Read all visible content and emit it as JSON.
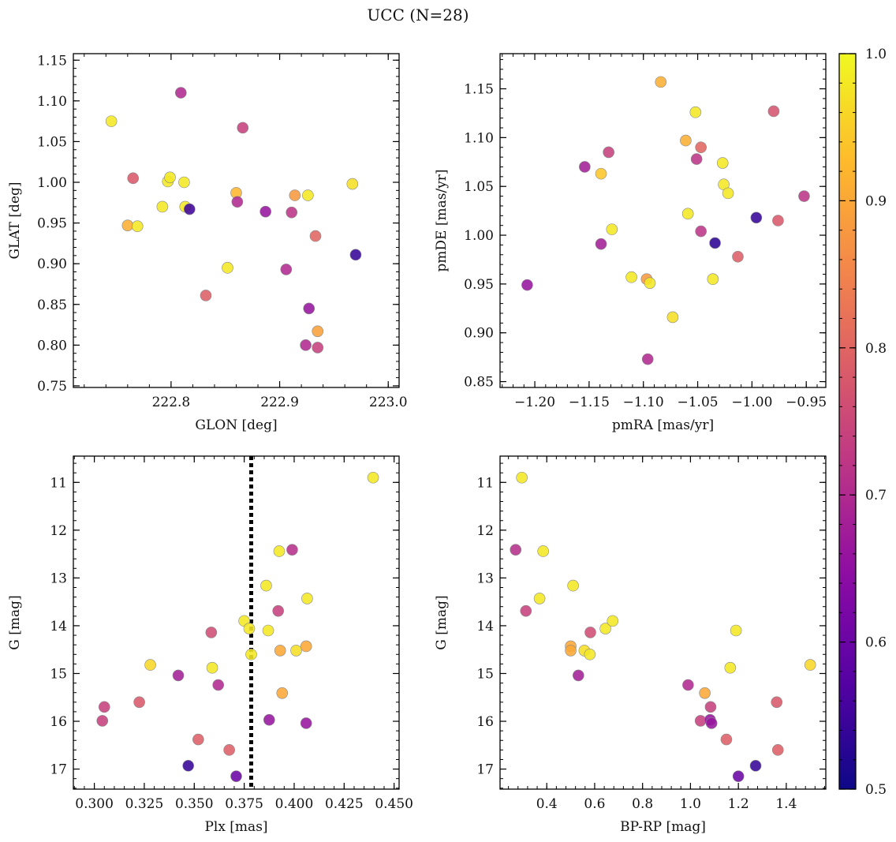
{
  "figure": {
    "title": "UCC (N=28)"
  },
  "colorbar": {
    "min": 0.5,
    "max": 1.0,
    "colormap": "plasma",
    "ticks": [
      0.5,
      0.6,
      0.7,
      0.8,
      0.9,
      1.0
    ],
    "tick_labels": [
      "0.5",
      "0.6",
      "0.7",
      "0.8",
      "0.9",
      "1.0"
    ]
  },
  "chart_data": [
    {
      "id": "glon-glat",
      "type": "scatter",
      "xlabel": "GLON [deg]",
      "ylabel": "GLAT [deg]",
      "xlim": [
        222.71,
        223.01
      ],
      "ylim": [
        0.748,
        1.158
      ],
      "y_inverted": false,
      "xticks": [
        222.8,
        222.9,
        223.0
      ],
      "xtick_labels": [
        "222.8",
        "222.9",
        "223.0"
      ],
      "yticks": [
        0.75,
        0.8,
        0.85,
        0.9,
        0.95,
        1.0,
        1.05,
        1.1,
        1.15
      ],
      "ytick_labels": [
        "0.75",
        "0.80",
        "0.85",
        "0.90",
        "0.95",
        "1.00",
        "1.05",
        "1.10",
        "1.15"
      ],
      "points": [
        {
          "x": 222.745,
          "y": 1.075,
          "c": 0.98
        },
        {
          "x": 222.765,
          "y": 1.005,
          "c": 0.78
        },
        {
          "x": 222.76,
          "y": 0.947,
          "c": 0.91
        },
        {
          "x": 222.769,
          "y": 0.946,
          "c": 0.98
        },
        {
          "x": 222.792,
          "y": 0.97,
          "c": 0.98
        },
        {
          "x": 222.797,
          "y": 1.001,
          "c": 0.98
        },
        {
          "x": 222.799,
          "y": 1.006,
          "c": 0.98
        },
        {
          "x": 222.809,
          "y": 1.11,
          "c": 0.7
        },
        {
          "x": 222.812,
          "y": 1.0,
          "c": 0.98
        },
        {
          "x": 222.813,
          "y": 0.97,
          "c": 0.98
        },
        {
          "x": 222.817,
          "y": 0.967,
          "c": 0.55
        },
        {
          "x": 222.832,
          "y": 0.861,
          "c": 0.79
        },
        {
          "x": 222.852,
          "y": 0.895,
          "c": 0.98
        },
        {
          "x": 222.86,
          "y": 0.987,
          "c": 0.92
        },
        {
          "x": 222.861,
          "y": 0.976,
          "c": 0.7
        },
        {
          "x": 222.866,
          "y": 1.067,
          "c": 0.74
        },
        {
          "x": 222.887,
          "y": 0.964,
          "c": 0.66
        },
        {
          "x": 222.906,
          "y": 0.893,
          "c": 0.7
        },
        {
          "x": 222.911,
          "y": 0.963,
          "c": 0.72
        },
        {
          "x": 222.914,
          "y": 0.984,
          "c": 0.88
        },
        {
          "x": 222.924,
          "y": 0.8,
          "c": 0.7
        },
        {
          "x": 222.926,
          "y": 0.984,
          "c": 0.98
        },
        {
          "x": 222.927,
          "y": 0.845,
          "c": 0.66
        },
        {
          "x": 222.933,
          "y": 0.934,
          "c": 0.8
        },
        {
          "x": 222.935,
          "y": 0.817,
          "c": 0.89
        },
        {
          "x": 222.935,
          "y": 0.797,
          "c": 0.74
        },
        {
          "x": 222.967,
          "y": 0.998,
          "c": 0.97
        },
        {
          "x": 222.97,
          "y": 0.911,
          "c": 0.54
        }
      ]
    },
    {
      "id": "pmra-pmde",
      "type": "scatter",
      "xlabel": "pmRA [mas/yr]",
      "ylabel": "pmDE [mas/yr]",
      "xlim": [
        -1.232,
        -0.932
      ],
      "ylim": [
        0.844,
        1.186
      ],
      "y_inverted": false,
      "xticks": [
        -1.2,
        -1.15,
        -1.1,
        -1.05,
        -1.0,
        -0.95
      ],
      "xtick_labels": [
        "−1.20",
        "−1.15",
        "−1.10",
        "−1.05",
        "−1.00",
        "−0.95"
      ],
      "yticks": [
        0.85,
        0.9,
        0.95,
        1.0,
        1.05,
        1.1,
        1.15
      ],
      "ytick_labels": [
        "0.85",
        "0.90",
        "0.95",
        "1.00",
        "1.05",
        "1.10",
        "1.15"
      ],
      "points": [
        {
          "x": -1.207,
          "y": 0.949,
          "c": 0.66
        },
        {
          "x": -1.154,
          "y": 1.07,
          "c": 0.68
        },
        {
          "x": -1.139,
          "y": 0.991,
          "c": 0.68
        },
        {
          "x": -1.139,
          "y": 1.063,
          "c": 0.94
        },
        {
          "x": -1.132,
          "y": 1.085,
          "c": 0.74
        },
        {
          "x": -1.129,
          "y": 1.006,
          "c": 0.98
        },
        {
          "x": -1.111,
          "y": 0.957,
          "c": 0.98
        },
        {
          "x": -1.097,
          "y": 0.955,
          "c": 0.88
        },
        {
          "x": -1.096,
          "y": 0.873,
          "c": 0.7
        },
        {
          "x": -1.094,
          "y": 0.951,
          "c": 0.98
        },
        {
          "x": -1.084,
          "y": 1.157,
          "c": 0.91
        },
        {
          "x": -1.073,
          "y": 0.916,
          "c": 0.97
        },
        {
          "x": -1.061,
          "y": 1.097,
          "c": 0.91
        },
        {
          "x": -1.059,
          "y": 1.022,
          "c": 0.98
        },
        {
          "x": -1.052,
          "y": 1.126,
          "c": 0.98
        },
        {
          "x": -1.051,
          "y": 1.078,
          "c": 0.72
        },
        {
          "x": -1.047,
          "y": 1.09,
          "c": 0.8
        },
        {
          "x": -1.047,
          "y": 1.004,
          "c": 0.72
        },
        {
          "x": -1.036,
          "y": 0.955,
          "c": 0.98
        },
        {
          "x": -1.034,
          "y": 0.992,
          "c": 0.53
        },
        {
          "x": -1.027,
          "y": 1.074,
          "c": 0.98
        },
        {
          "x": -1.026,
          "y": 1.052,
          "c": 0.98
        },
        {
          "x": -1.022,
          "y": 1.043,
          "c": 0.98
        },
        {
          "x": -1.013,
          "y": 0.978,
          "c": 0.79
        },
        {
          "x": -0.996,
          "y": 1.018,
          "c": 0.54
        },
        {
          "x": -0.98,
          "y": 1.127,
          "c": 0.77
        },
        {
          "x": -0.976,
          "y": 1.015,
          "c": 0.78
        },
        {
          "x": -0.952,
          "y": 1.04,
          "c": 0.72
        }
      ]
    },
    {
      "id": "plx-g",
      "type": "scatter",
      "xlabel": "Plx [mas]",
      "ylabel": "G [mag]",
      "xlim": [
        0.2895,
        0.4525
      ],
      "ylim": [
        10.45,
        17.42
      ],
      "y_inverted": true,
      "xticks": [
        0.3,
        0.325,
        0.35,
        0.375,
        0.4,
        0.425,
        0.45
      ],
      "xtick_labels": [
        "0.300",
        "0.325",
        "0.350",
        "0.375",
        "0.400",
        "0.425",
        "0.450"
      ],
      "yticks": [
        11,
        12,
        13,
        14,
        15,
        16,
        17
      ],
      "ytick_labels": [
        "11",
        "12",
        "13",
        "14",
        "15",
        "16",
        "17"
      ],
      "vline": {
        "x": 0.3785,
        "style": "dotted"
      },
      "points": [
        {
          "x": 0.304,
          "y": 15.99,
          "c": 0.74
        },
        {
          "x": 0.305,
          "y": 15.7,
          "c": 0.74
        },
        {
          "x": 0.3225,
          "y": 15.6,
          "c": 0.78
        },
        {
          "x": 0.328,
          "y": 14.82,
          "c": 0.96
        },
        {
          "x": 0.342,
          "y": 15.04,
          "c": 0.68
        },
        {
          "x": 0.347,
          "y": 16.93,
          "c": 0.54
        },
        {
          "x": 0.352,
          "y": 16.38,
          "c": 0.79
        },
        {
          "x": 0.3585,
          "y": 14.14,
          "c": 0.76
        },
        {
          "x": 0.359,
          "y": 14.88,
          "c": 0.98
        },
        {
          "x": 0.362,
          "y": 15.24,
          "c": 0.7
        },
        {
          "x": 0.3675,
          "y": 16.6,
          "c": 0.79
        },
        {
          "x": 0.371,
          "y": 17.15,
          "c": 0.6
        },
        {
          "x": 0.375,
          "y": 13.9,
          "c": 0.98
        },
        {
          "x": 0.3775,
          "y": 14.06,
          "c": 0.98
        },
        {
          "x": 0.3785,
          "y": 14.6,
          "c": 0.98
        },
        {
          "x": 0.386,
          "y": 13.16,
          "c": 0.98
        },
        {
          "x": 0.387,
          "y": 14.1,
          "c": 0.98
        },
        {
          "x": 0.3875,
          "y": 15.97,
          "c": 0.66
        },
        {
          "x": 0.392,
          "y": 13.69,
          "c": 0.74
        },
        {
          "x": 0.3925,
          "y": 12.44,
          "c": 0.98
        },
        {
          "x": 0.393,
          "y": 14.52,
          "c": 0.9
        },
        {
          "x": 0.394,
          "y": 15.41,
          "c": 0.9
        },
        {
          "x": 0.399,
          "y": 12.41,
          "c": 0.71
        },
        {
          "x": 0.401,
          "y": 14.52,
          "c": 0.97
        },
        {
          "x": 0.406,
          "y": 14.43,
          "c": 0.9
        },
        {
          "x": 0.406,
          "y": 16.04,
          "c": 0.66
        },
        {
          "x": 0.4065,
          "y": 13.43,
          "c": 0.98
        },
        {
          "x": 0.4395,
          "y": 10.9,
          "c": 0.98
        }
      ]
    },
    {
      "id": "bprp-g",
      "type": "scatter",
      "xlabel": "BP-RP [mag]",
      "ylabel": "G [mag]",
      "xlim": [
        0.205,
        1.565
      ],
      "ylim": [
        10.45,
        17.42
      ],
      "y_inverted": true,
      "xticks": [
        0.4,
        0.6,
        0.8,
        1.0,
        1.2,
        1.4
      ],
      "xtick_labels": [
        "0.4",
        "0.6",
        "0.8",
        "1.0",
        "1.2",
        "1.4"
      ],
      "yticks": [
        11,
        12,
        13,
        14,
        15,
        16,
        17
      ],
      "ytick_labels": [
        "11",
        "12",
        "13",
        "14",
        "15",
        "16",
        "17"
      ],
      "points": [
        {
          "x": 0.27,
          "y": 12.41,
          "c": 0.71
        },
        {
          "x": 0.296,
          "y": 10.9,
          "c": 0.98
        },
        {
          "x": 0.313,
          "y": 13.69,
          "c": 0.74
        },
        {
          "x": 0.37,
          "y": 13.43,
          "c": 0.98
        },
        {
          "x": 0.385,
          "y": 12.44,
          "c": 0.98
        },
        {
          "x": 0.5,
          "y": 14.43,
          "c": 0.9
        },
        {
          "x": 0.5,
          "y": 14.52,
          "c": 0.9
        },
        {
          "x": 0.51,
          "y": 13.16,
          "c": 0.98
        },
        {
          "x": 0.532,
          "y": 15.04,
          "c": 0.68
        },
        {
          "x": 0.557,
          "y": 14.52,
          "c": 0.97
        },
        {
          "x": 0.58,
          "y": 14.6,
          "c": 0.98
        },
        {
          "x": 0.582,
          "y": 14.14,
          "c": 0.76
        },
        {
          "x": 0.645,
          "y": 14.06,
          "c": 0.98
        },
        {
          "x": 0.675,
          "y": 13.9,
          "c": 0.98
        },
        {
          "x": 0.99,
          "y": 15.24,
          "c": 0.7
        },
        {
          "x": 1.042,
          "y": 15.99,
          "c": 0.74
        },
        {
          "x": 1.06,
          "y": 15.41,
          "c": 0.9
        },
        {
          "x": 1.082,
          "y": 15.97,
          "c": 0.66
        },
        {
          "x": 1.084,
          "y": 15.7,
          "c": 0.74
        },
        {
          "x": 1.088,
          "y": 16.04,
          "c": 0.66
        },
        {
          "x": 1.15,
          "y": 16.38,
          "c": 0.79
        },
        {
          "x": 1.166,
          "y": 14.88,
          "c": 0.98
        },
        {
          "x": 1.19,
          "y": 14.1,
          "c": 0.98
        },
        {
          "x": 1.2,
          "y": 17.15,
          "c": 0.6
        },
        {
          "x": 1.272,
          "y": 16.93,
          "c": 0.54
        },
        {
          "x": 1.36,
          "y": 15.6,
          "c": 0.78
        },
        {
          "x": 1.365,
          "y": 16.6,
          "c": 0.79
        },
        {
          "x": 1.5,
          "y": 14.82,
          "c": 0.96
        }
      ]
    }
  ]
}
